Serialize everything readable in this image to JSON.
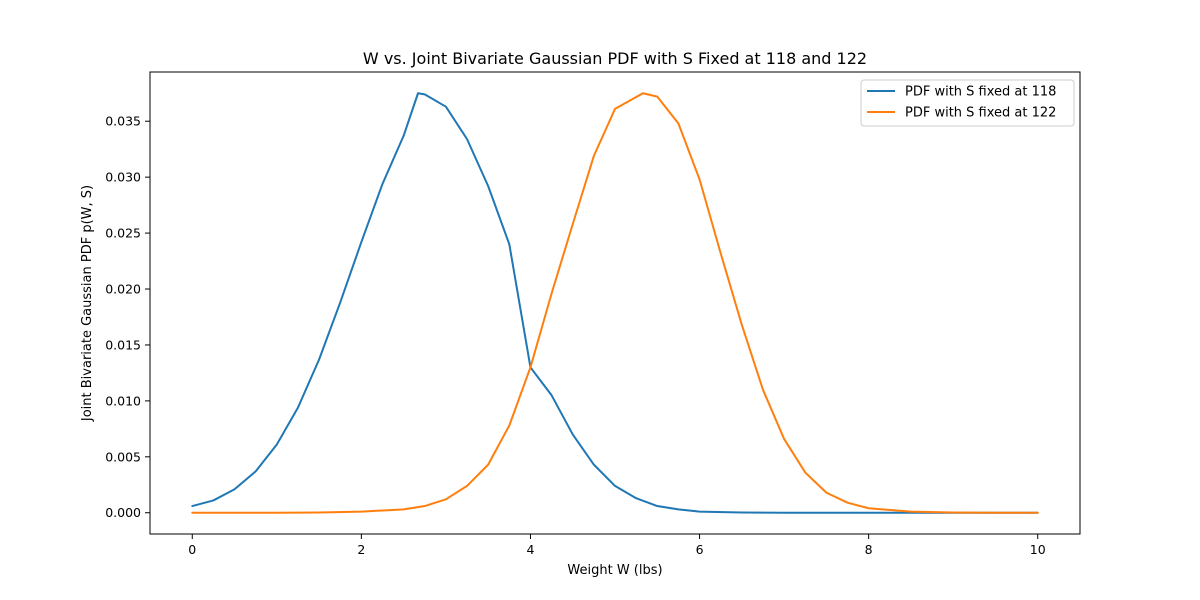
{
  "chart_data": {
    "type": "line",
    "title": "W vs. Joint Bivariate Gaussian PDF with S Fixed at 118 and 122",
    "xlabel": "Weight W (lbs)",
    "ylabel": "Joint Bivariate Gaussian PDF p(W, S)",
    "xlim": [
      -0.5,
      10.5
    ],
    "ylim": [
      -0.0019,
      0.0394
    ],
    "x_ticks": [
      0,
      2,
      4,
      6,
      8,
      10
    ],
    "x_tick_labels": [
      "0",
      "2",
      "4",
      "6",
      "8",
      "10"
    ],
    "y_ticks": [
      0.0,
      0.005,
      0.01,
      0.015,
      0.02,
      0.025,
      0.03,
      0.035
    ],
    "y_tick_labels": [
      "0.000",
      "0.005",
      "0.010",
      "0.015",
      "0.020",
      "0.025",
      "0.030",
      "0.035"
    ],
    "grid": false,
    "legend_position": "top-right",
    "series": [
      {
        "name": "PDF with S fixed at 118",
        "color": "#1f77b4",
        "x": [
          0,
          0.25,
          0.5,
          0.75,
          1,
          1.25,
          1.5,
          1.75,
          2,
          2.25,
          2.5,
          2.67,
          2.75,
          3,
          3.25,
          3.5,
          3.75,
          4,
          4.25,
          4.5,
          4.75,
          5,
          5.25,
          5.5,
          5.75,
          6,
          6.5,
          7,
          7.5,
          8,
          9,
          10
        ],
        "y": [
          0.0006,
          0.0011,
          0.0021,
          0.0037,
          0.0061,
          0.0094,
          0.0137,
          0.0188,
          0.0242,
          0.0294,
          0.0337,
          0.0375,
          0.0374,
          0.0363,
          0.0334,
          0.0292,
          0.024,
          0.013,
          0.0105,
          0.007,
          0.0043,
          0.0024,
          0.0013,
          0.0006,
          0.0003,
          0.0001,
          2e-05,
          0.0,
          0.0,
          0.0,
          0.0,
          0.0
        ]
      },
      {
        "name": "PDF with S fixed at 122",
        "color": "#ff7f0e",
        "x": [
          0,
          1,
          1.5,
          2,
          2.5,
          2.75,
          3,
          3.25,
          3.5,
          3.75,
          4,
          4.25,
          4.5,
          4.75,
          5,
          5.33,
          5.5,
          5.75,
          6,
          6.25,
          6.5,
          6.75,
          7,
          7.25,
          7.5,
          7.75,
          8,
          8.5,
          9,
          9.5,
          10
        ],
        "y": [
          0.0,
          0.0,
          2e-05,
          0.0001,
          0.0003,
          0.0006,
          0.0012,
          0.0024,
          0.0043,
          0.0078,
          0.013,
          0.0196,
          0.0258,
          0.0319,
          0.0361,
          0.0375,
          0.0372,
          0.0348,
          0.0298,
          0.0232,
          0.0168,
          0.011,
          0.0066,
          0.0036,
          0.0018,
          0.0009,
          0.0004,
          0.0001,
          2e-05,
          0.0,
          0.0
        ]
      }
    ]
  }
}
